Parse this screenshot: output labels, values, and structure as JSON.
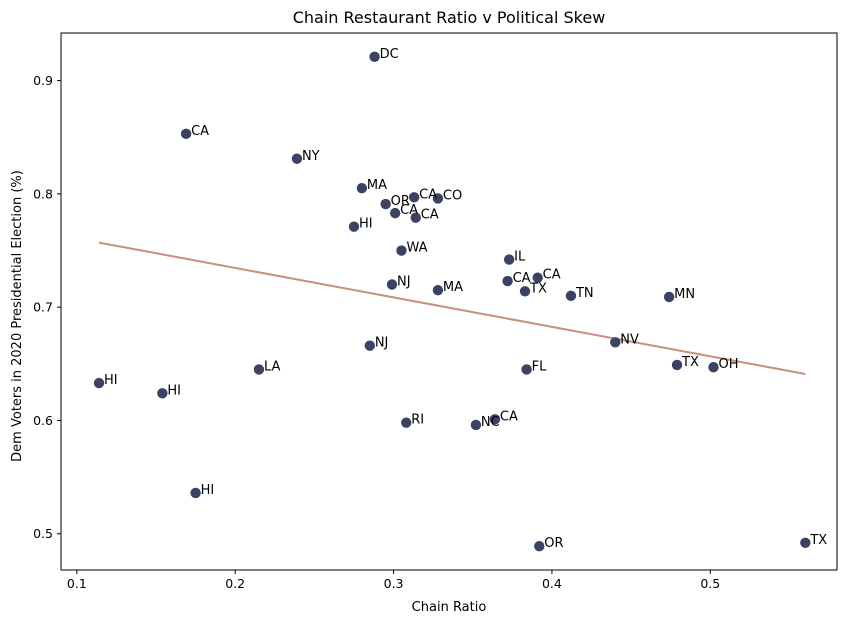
{
  "chart_data": {
    "type": "scatter",
    "title": "Chain Restaurant Ratio v Political Skew",
    "xlabel": "Chain Ratio",
    "ylabel": "Dem Voters in 2020 Presidential Election (%)",
    "xlim": [
      0.09,
      0.58
    ],
    "ylim": [
      0.468,
      0.942
    ],
    "xticks": [
      0.1,
      0.2,
      0.3,
      0.4,
      0.5
    ],
    "yticks": [
      0.5,
      0.6,
      0.7,
      0.8,
      0.9
    ],
    "xtick_labels": [
      "0.1",
      "0.2",
      "0.3",
      "0.4",
      "0.5"
    ],
    "ytick_labels": [
      "0.5",
      "0.6",
      "0.7",
      "0.8",
      "0.9"
    ],
    "grid": false,
    "colors": {
      "points": "#3b4263",
      "trendline": "#c98f7f"
    },
    "trendline": {
      "x": [
        0.114,
        0.56
      ],
      "y": [
        0.757,
        0.641
      ]
    },
    "points": [
      {
        "label": "DC",
        "x": 0.288,
        "y": 0.921
      },
      {
        "label": "CA",
        "x": 0.169,
        "y": 0.853
      },
      {
        "label": "NY",
        "x": 0.239,
        "y": 0.831
      },
      {
        "label": "MA",
        "x": 0.28,
        "y": 0.805
      },
      {
        "label": "CA",
        "x": 0.313,
        "y": 0.797
      },
      {
        "label": "CO",
        "x": 0.328,
        "y": 0.796
      },
      {
        "label": "OR",
        "x": 0.295,
        "y": 0.791
      },
      {
        "label": "CA",
        "x": 0.301,
        "y": 0.783
      },
      {
        "label": "CA",
        "x": 0.314,
        "y": 0.779
      },
      {
        "label": "HI",
        "x": 0.275,
        "y": 0.771
      },
      {
        "label": "WA",
        "x": 0.305,
        "y": 0.75
      },
      {
        "label": "IL",
        "x": 0.373,
        "y": 0.742
      },
      {
        "label": "CA",
        "x": 0.372,
        "y": 0.723
      },
      {
        "label": "CA",
        "x": 0.391,
        "y": 0.726
      },
      {
        "label": "NJ",
        "x": 0.299,
        "y": 0.72
      },
      {
        "label": "MA",
        "x": 0.328,
        "y": 0.715
      },
      {
        "label": "TX",
        "x": 0.383,
        "y": 0.714
      },
      {
        "label": "TN",
        "x": 0.412,
        "y": 0.71
      },
      {
        "label": "MN",
        "x": 0.474,
        "y": 0.709
      },
      {
        "label": "NV",
        "x": 0.44,
        "y": 0.669
      },
      {
        "label": "NJ",
        "x": 0.285,
        "y": 0.666
      },
      {
        "label": "TX",
        "x": 0.479,
        "y": 0.649
      },
      {
        "label": "OH",
        "x": 0.502,
        "y": 0.647
      },
      {
        "label": "LA",
        "x": 0.215,
        "y": 0.645
      },
      {
        "label": "FL",
        "x": 0.384,
        "y": 0.645
      },
      {
        "label": "HI",
        "x": 0.114,
        "y": 0.633
      },
      {
        "label": "HI",
        "x": 0.154,
        "y": 0.624
      },
      {
        "label": "CA",
        "x": 0.364,
        "y": 0.601
      },
      {
        "label": "RI",
        "x": 0.308,
        "y": 0.598
      },
      {
        "label": "NC",
        "x": 0.352,
        "y": 0.596
      },
      {
        "label": "HI",
        "x": 0.175,
        "y": 0.536
      },
      {
        "label": "OR",
        "x": 0.392,
        "y": 0.489
      },
      {
        "label": "TX",
        "x": 0.56,
        "y": 0.492
      }
    ]
  }
}
